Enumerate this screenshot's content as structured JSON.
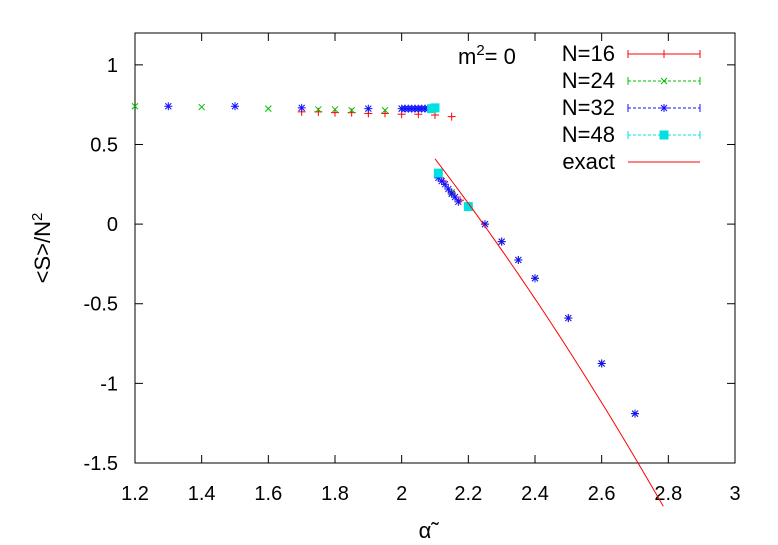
{
  "chart_data": {
    "type": "scatter",
    "title": "",
    "annotation": {
      "text": "m",
      "sup": "2",
      "rest": "= 0"
    },
    "ylabel": {
      "text": "<S>/N",
      "sup": "2"
    },
    "xlabel": "α̃",
    "xlim": [
      1.2,
      3.0
    ],
    "ylim": [
      -1.5,
      1.2
    ],
    "xticks": [
      "1.2",
      "1.4",
      "1.6",
      "1.8",
      "2",
      "2.2",
      "2.4",
      "2.6",
      "2.8",
      "3"
    ],
    "yticks": [
      "1",
      "0.5",
      "0",
      "-0.5",
      "-1",
      "-1.5"
    ],
    "legend_position": "top-right",
    "series": [
      {
        "name": "N=16",
        "color": "#ff0000",
        "marker": "plus",
        "x": [
          1.7,
          1.75,
          1.8,
          1.85,
          1.9,
          1.95,
          2.0,
          2.05,
          2.1,
          2.15,
          2.125,
          2.15,
          2.175,
          2.2,
          2.25,
          2.3,
          2.35,
          2.4,
          2.5,
          2.6,
          2.7
        ],
        "y": [
          0.705,
          0.705,
          0.7,
          0.7,
          0.695,
          0.695,
          0.69,
          0.69,
          0.685,
          0.675,
          0.27,
          0.2,
          0.15,
          0.11,
          0.0,
          -0.11,
          -0.225,
          -0.34,
          -0.59,
          -0.875,
          -1.19
        ]
      },
      {
        "name": "N=24",
        "color": "#00c000",
        "marker": "x",
        "x": [
          1.2,
          1.4,
          1.6,
          1.75,
          1.8,
          1.85,
          1.95,
          2.0,
          2.05,
          2.11,
          2.15,
          2.2,
          2.25,
          2.3,
          2.35,
          2.4,
          2.5,
          2.6,
          2.7
        ],
        "y": [
          0.74,
          0.735,
          0.725,
          0.72,
          0.72,
          0.715,
          0.715,
          0.725,
          0.725,
          0.32,
          0.2,
          0.11,
          0.0,
          -0.11,
          -0.225,
          -0.34,
          -0.59,
          -0.875,
          -1.19
        ]
      },
      {
        "name": "N=32",
        "color": "#1010ff",
        "marker": "star",
        "x": [
          1.3,
          1.5,
          1.7,
          1.9,
          2.0,
          2.01,
          2.02,
          2.03,
          2.04,
          2.05,
          2.06,
          2.07,
          2.08,
          2.09,
          2.1,
          2.11,
          2.12,
          2.13,
          2.14,
          2.15,
          2.16,
          2.17,
          2.2,
          2.25,
          2.3,
          2.35,
          2.4,
          2.5,
          2.6,
          2.7
        ],
        "y": [
          0.74,
          0.74,
          0.73,
          0.725,
          0.725,
          0.725,
          0.725,
          0.725,
          0.725,
          0.725,
          0.725,
          0.725,
          0.725,
          0.725,
          0.725,
          0.29,
          0.27,
          0.25,
          0.22,
          0.19,
          0.17,
          0.14,
          0.11,
          0.0,
          -0.11,
          -0.225,
          -0.34,
          -0.59,
          -0.875,
          -1.19
        ]
      },
      {
        "name": "N=48",
        "color": "#00e0e0",
        "marker": "square",
        "x": [
          2.09,
          2.1,
          2.11,
          2.2
        ],
        "y": [
          0.725,
          0.73,
          0.32,
          0.11
        ]
      }
    ],
    "curve": {
      "name": "exact",
      "color": "#ff0000",
      "x_range": [
        2.1,
        2.785
      ],
      "y_at_2_1": 0.41,
      "slope_at_2_1": -2.73,
      "curvature": -0.665
    }
  }
}
